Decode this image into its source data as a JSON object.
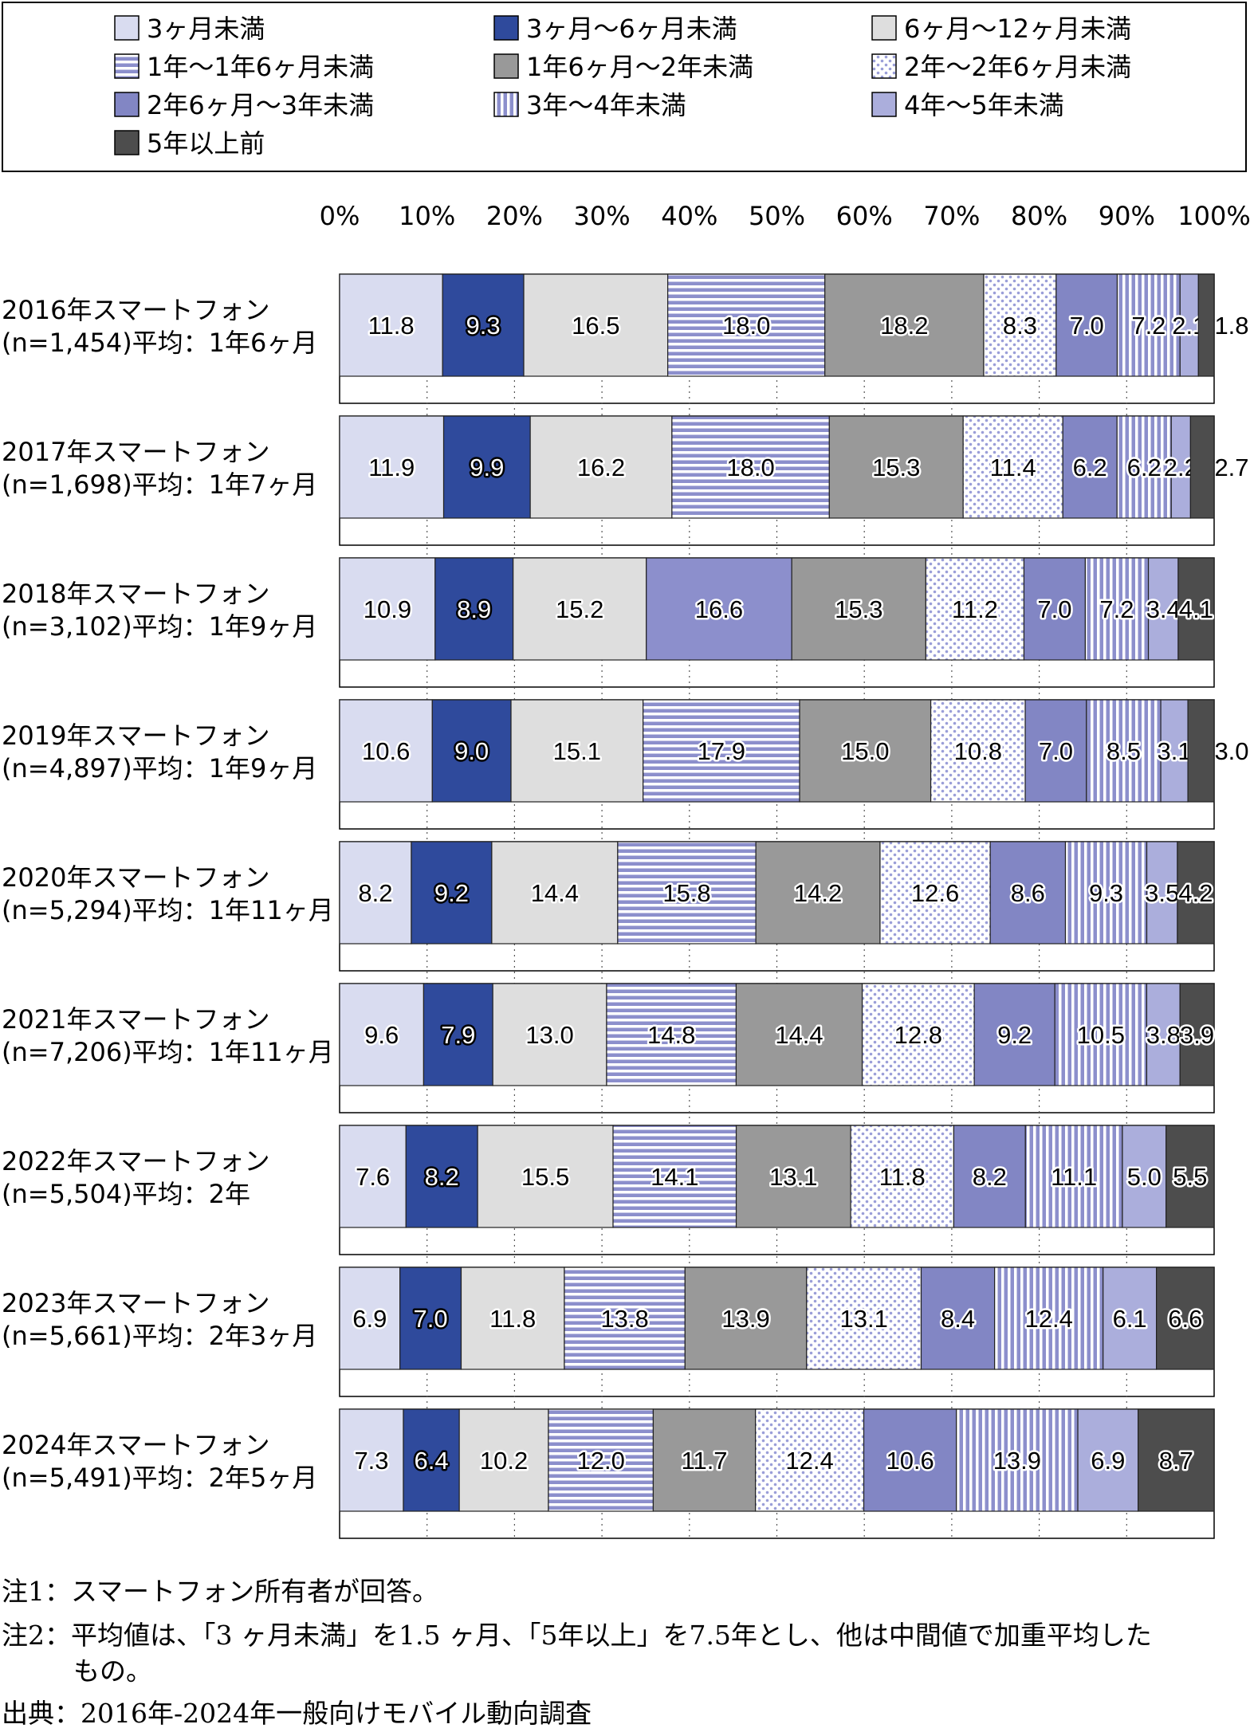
{
  "colors": {
    "c1": "#d9dcf0",
    "c2": "#2f4a9c",
    "c3": "#dedede",
    "c4": "#8c8fcc",
    "c5": "#999999",
    "c6": "#cfd2ee",
    "c7": "#8286c4",
    "c8": "#8c8fcc",
    "c9": "#abaedc",
    "c10": "#4d4d4d"
  },
  "chart_data": {
    "type": "bar",
    "orientation": "horizontal",
    "stacked": true,
    "x_ticks": [
      "0%",
      "10%",
      "20%",
      "30%",
      "40%",
      "50%",
      "60%",
      "70%",
      "80%",
      "90%",
      "100%"
    ],
    "xlim": [
      0,
      100
    ],
    "grid": "vertical dotted",
    "legend_position": "top",
    "legend": [
      {
        "label": "3ヶ月未満",
        "pattern": "solid",
        "color": "c1"
      },
      {
        "label": "3ヶ月～6ヶ月未満",
        "pattern": "solid",
        "color": "c2"
      },
      {
        "label": "6ヶ月～12ヶ月未満",
        "pattern": "solid",
        "color": "c3"
      },
      {
        "label": "1年～1年6ヶ月未満",
        "pattern": "hstripe",
        "color": "c4"
      },
      {
        "label": "1年6ヶ月～2年未満",
        "pattern": "solid",
        "color": "c5"
      },
      {
        "label": "2年～2年6ヶ月未満",
        "pattern": "dots",
        "color": "c6"
      },
      {
        "label": "2年6ヶ月～3年未満",
        "pattern": "solid",
        "color": "c7"
      },
      {
        "label": "3年～4年未満",
        "pattern": "vstripe",
        "color": "c8"
      },
      {
        "label": "4年～5年未満",
        "pattern": "solid",
        "color": "c9"
      },
      {
        "label": "5年以上前",
        "pattern": "solid",
        "color": "c10"
      }
    ],
    "categories": [
      {
        "line1": "2016年スマートフォン",
        "line2": "(n=1,454)平均：1年6ヶ月",
        "hstripe4": true,
        "values": [
          11.8,
          9.3,
          16.5,
          18.0,
          18.2,
          8.3,
          7.0,
          7.2,
          2.1,
          1.8
        ]
      },
      {
        "line1": "2017年スマートフォン",
        "line2": "(n=1,698)平均：1年7ヶ月",
        "hstripe4": true,
        "values": [
          11.9,
          9.9,
          16.2,
          18.0,
          15.3,
          11.4,
          6.2,
          6.2,
          2.2,
          2.7
        ]
      },
      {
        "line1": "2018年スマートフォン",
        "line2": "(n=3,102)平均：1年9ヶ月",
        "hstripe4": false,
        "values": [
          10.9,
          8.9,
          15.2,
          16.6,
          15.3,
          11.2,
          7.0,
          7.2,
          3.4,
          4.1
        ]
      },
      {
        "line1": "2019年スマートフォン",
        "line2": "(n=4,897)平均：1年9ヶ月",
        "hstripe4": true,
        "values": [
          10.6,
          9.0,
          15.1,
          17.9,
          15.0,
          10.8,
          7.0,
          8.5,
          3.1,
          3.0
        ]
      },
      {
        "line1": "2020年スマートフォン",
        "line2": "(n=5,294)平均：1年11ヶ月",
        "hstripe4": true,
        "values": [
          8.2,
          9.2,
          14.4,
          15.8,
          14.2,
          12.6,
          8.6,
          9.3,
          3.5,
          4.2
        ]
      },
      {
        "line1": "2021年スマートフォン",
        "line2": "(n=7,206)平均：1年11ヶ月",
        "hstripe4": true,
        "values": [
          9.6,
          7.9,
          13.0,
          14.8,
          14.4,
          12.8,
          9.2,
          10.5,
          3.8,
          3.9
        ]
      },
      {
        "line1": "2022年スマートフォン",
        "line2": "(n=5,504)平均：2年",
        "hstripe4": true,
        "values": [
          7.6,
          8.2,
          15.5,
          14.1,
          13.1,
          11.8,
          8.2,
          11.1,
          5.0,
          5.5
        ]
      },
      {
        "line1": "2023年スマートフォン",
        "line2": "(n=5,661)平均：2年3ヶ月",
        "hstripe4": true,
        "values": [
          6.9,
          7.0,
          11.8,
          13.8,
          13.9,
          13.1,
          8.4,
          12.4,
          6.1,
          6.6
        ]
      },
      {
        "line1": "2024年スマートフォン",
        "line2": "(n=5,491)平均：2年5ヶ月",
        "hstripe4": true,
        "values": [
          7.3,
          6.4,
          10.2,
          12.0,
          11.7,
          12.4,
          10.6,
          13.9,
          6.9,
          8.7
        ]
      }
    ]
  },
  "notes": {
    "note1": "注1：スマートフォン所有者が回答。",
    "note2": "注2：平均値は、「3 ヶ月未満」を1.5 ヶ月、「5年以上」を7.5年とし、他は中間値で加重平均した",
    "note2_cont": "もの。",
    "source": "出典：2016年-2024年一般向けモバイル動向調査"
  }
}
